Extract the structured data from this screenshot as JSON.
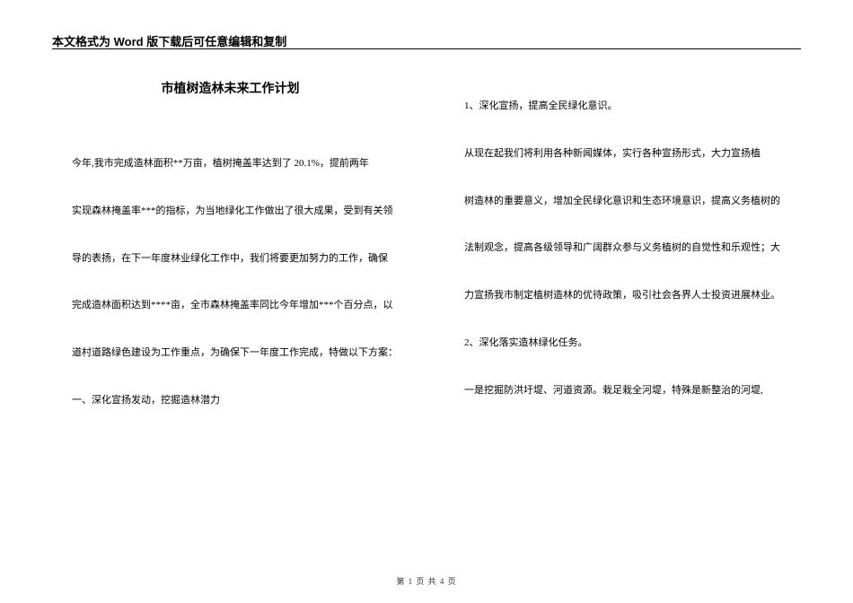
{
  "header": {
    "notice": "本文格式为 Word 版下载后可任意编辑和复制"
  },
  "document": {
    "title": "市植树造林未来工作计划",
    "left_paragraphs": [
      "今年,我市完成造林面积**万亩，植树掩盖率达到了 20.1%，提前两年",
      "实现森林掩盖率***的指标，为当地绿化工作做出了很大成果，受到有关领",
      "导的表扬，在下一年度林业绿化工作中，我们将要更加努力的工作，确保",
      "完成造林面积达到****亩，全市森林掩盖率同比今年增加***个百分点，以",
      "道村道路绿色建设为工作重点，为确保下一年度工作完成，特做以下方案："
    ],
    "left_heading": "一、深化宣扬发动，挖掘造林潜力",
    "right_paragraphs": [
      "1、深化宣扬，提高全民绿化意识。",
      "从现在起我们将利用各种新闻媒体，实行各种宣扬形式，大力宣扬植",
      "树造林的重要意义，增加全民绿化意识和生态环境意识，提高义务植树的",
      "法制观念，提高各级领导和广阔群众参与义务植树的自觉性和乐观性；大",
      "力宣扬我市制定植树造林的优待政策，吸引社会各界人士投资进展林业。",
      "2、深化落实造林绿化任务。",
      "一是挖掘防洪圩堤、河道资源。栽足栽全河堤，特殊是新整治的河堤,"
    ]
  },
  "footer": {
    "page_info": "第 1 页 共 4 页"
  }
}
